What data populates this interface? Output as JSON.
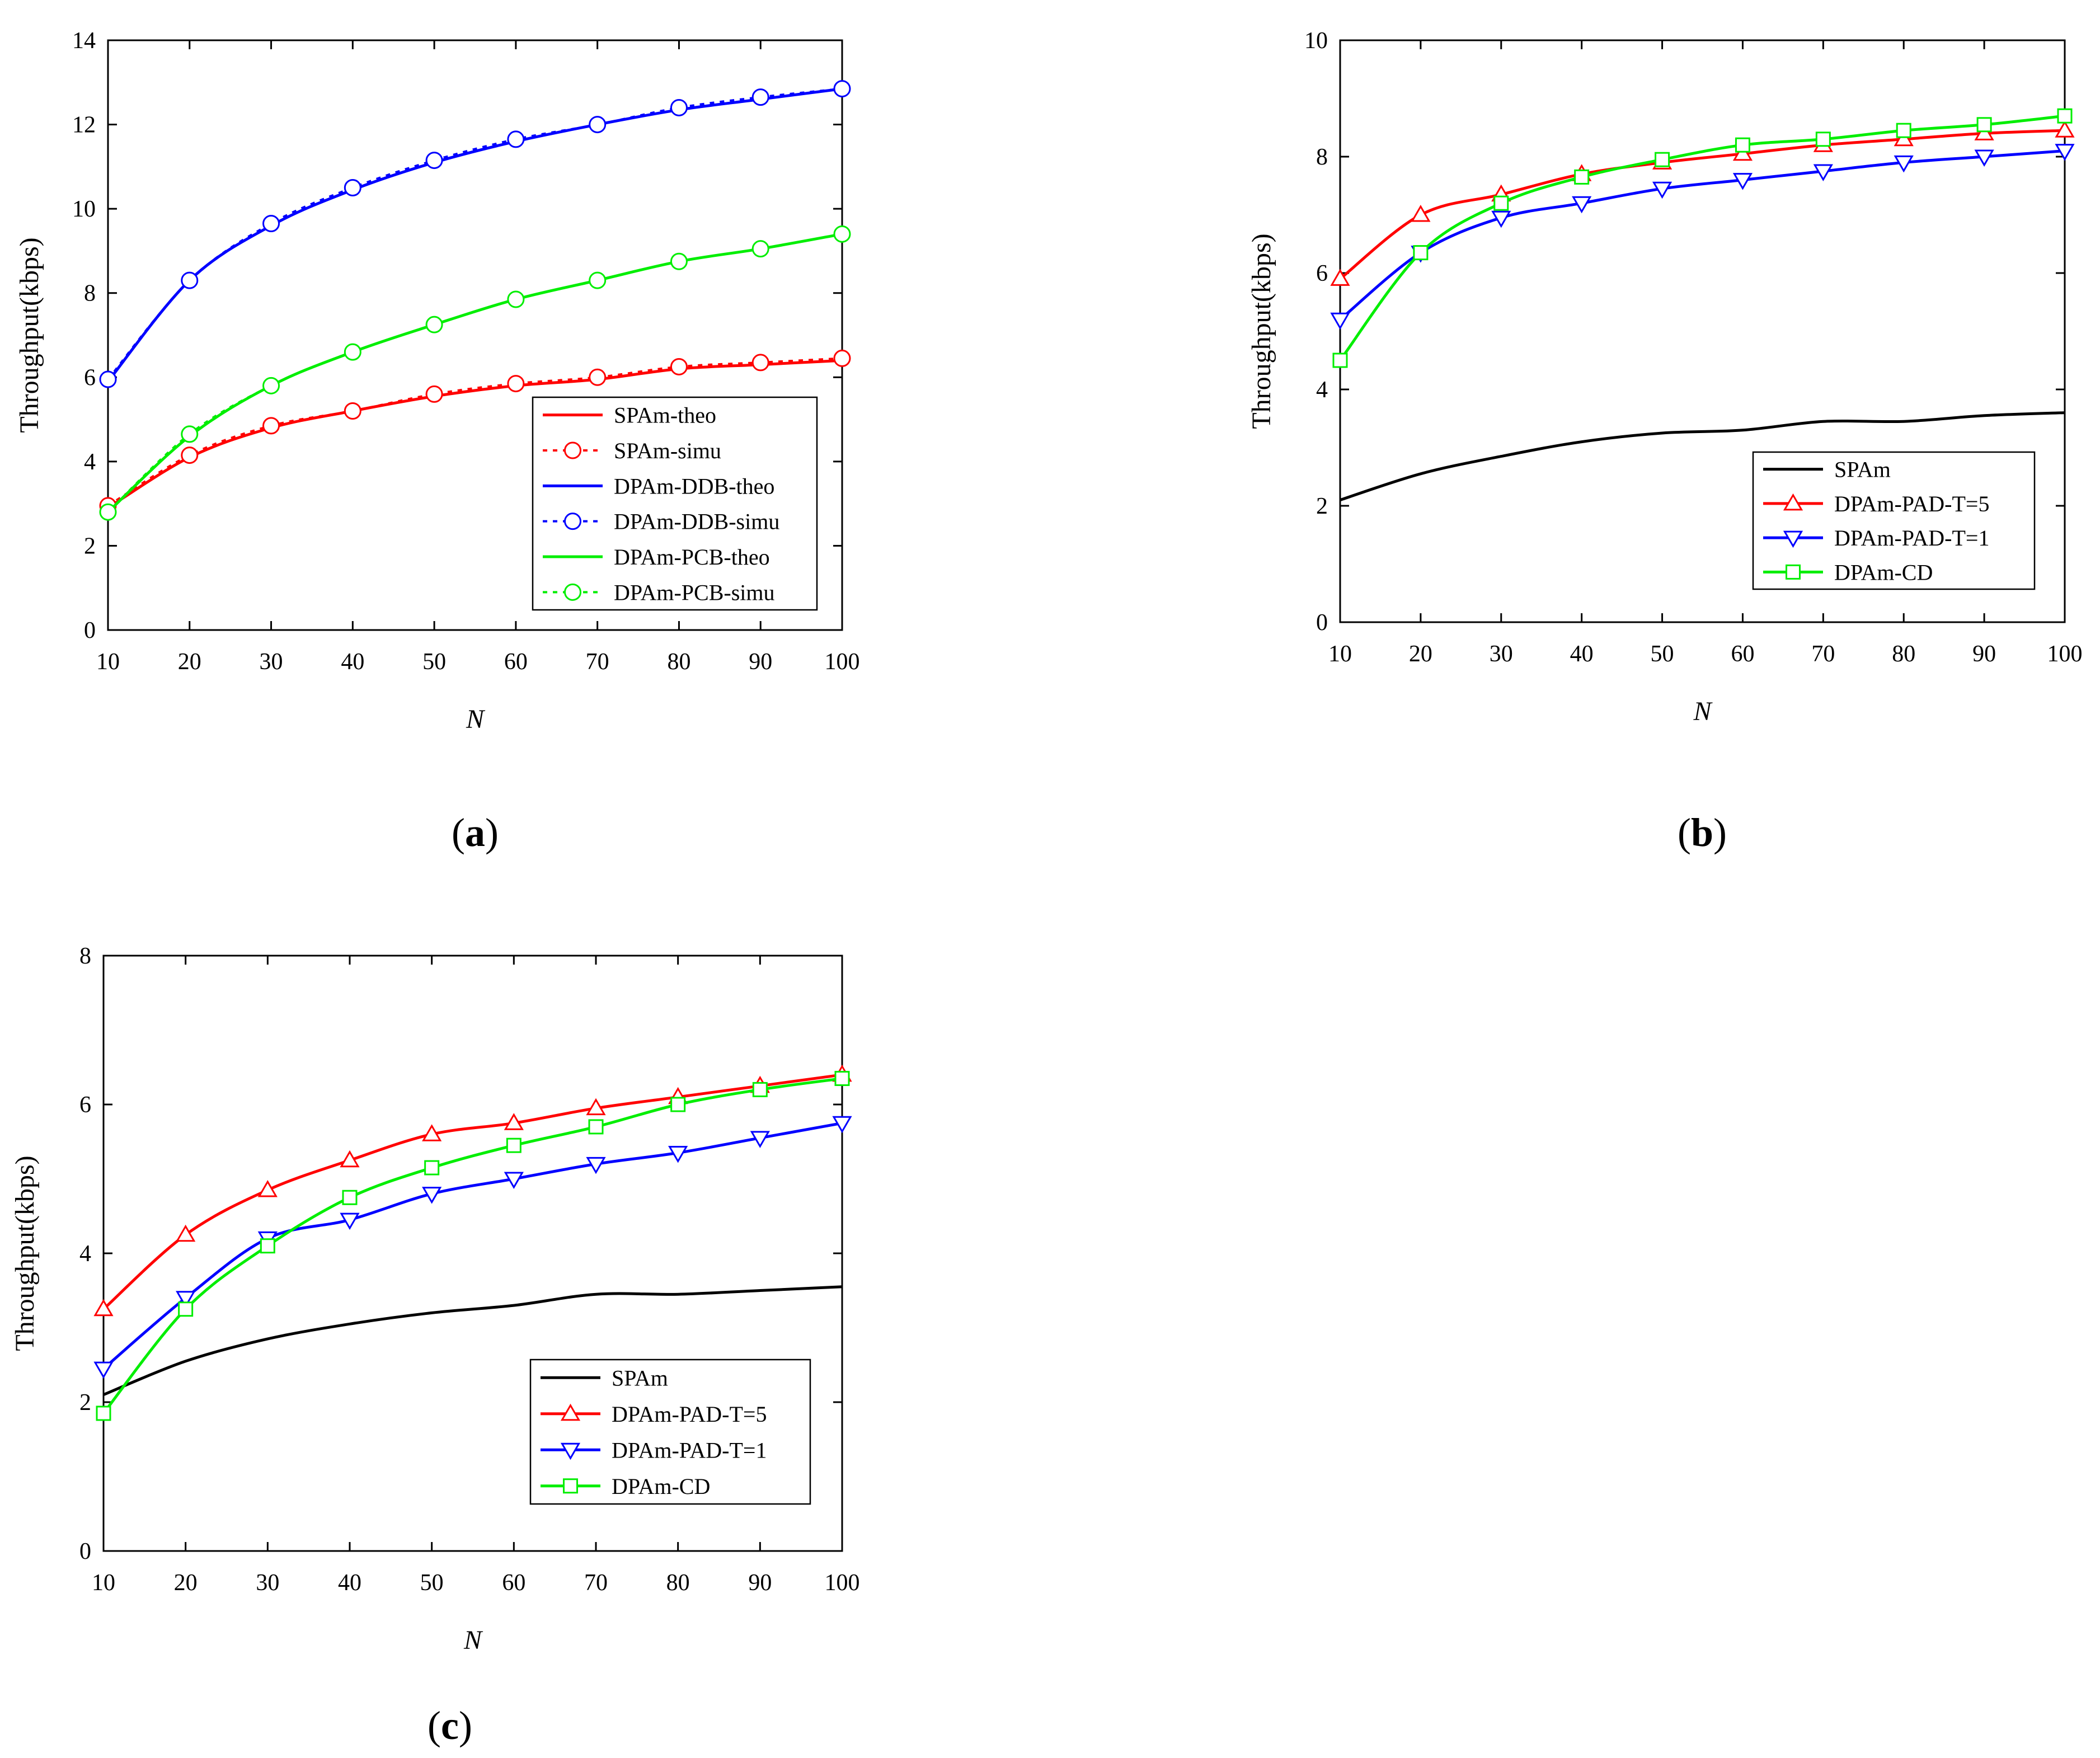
{
  "chart_data": [
    {
      "id": "a",
      "type": "line",
      "caption": "a",
      "xlabel": "N",
      "ylabel": "Throughput(kbps)",
      "xlim": [
        10,
        100
      ],
      "ylim": [
        0,
        14
      ],
      "xticks": [
        10,
        20,
        30,
        40,
        50,
        60,
        70,
        80,
        90,
        100
      ],
      "yticks": [
        0,
        2,
        4,
        6,
        8,
        10,
        12,
        14
      ],
      "legend_position": "bottom-right",
      "x": [
        10,
        20,
        30,
        40,
        50,
        60,
        70,
        80,
        90,
        100
      ],
      "series": [
        {
          "name": "SPAm-theo",
          "color": "#ff0000",
          "line": "solid",
          "marker": "none",
          "values": [
            2.9,
            4.1,
            4.8,
            5.2,
            5.55,
            5.8,
            5.95,
            6.2,
            6.3,
            6.4
          ]
        },
        {
          "name": "SPAm-simu",
          "color": "#ff0000",
          "line": "dotted",
          "marker": "circle",
          "values": [
            2.95,
            4.15,
            4.85,
            5.2,
            5.6,
            5.85,
            6.0,
            6.25,
            6.35,
            6.45
          ]
        },
        {
          "name": "DPAm-DDB-theo",
          "color": "#0000ff",
          "line": "solid",
          "marker": "none",
          "values": [
            5.9,
            8.3,
            9.6,
            10.45,
            11.1,
            11.6,
            12.0,
            12.35,
            12.6,
            12.85
          ]
        },
        {
          "name": "DPAm-DDB-simu",
          "color": "#0000ff",
          "line": "dotted",
          "marker": "circle",
          "values": [
            5.95,
            8.3,
            9.65,
            10.5,
            11.15,
            11.65,
            12.0,
            12.4,
            12.65,
            12.85
          ]
        },
        {
          "name": "DPAm-PCB-theo",
          "color": "#00ee00",
          "line": "solid",
          "marker": "none",
          "values": [
            2.8,
            4.6,
            5.8,
            6.6,
            7.25,
            7.85,
            8.3,
            8.75,
            9.05,
            9.4
          ]
        },
        {
          "name": "DPAm-PCB-simu",
          "color": "#00ee00",
          "line": "dotted",
          "marker": "circle",
          "values": [
            2.8,
            4.65,
            5.8,
            6.6,
            7.25,
            7.85,
            8.3,
            8.75,
            9.05,
            9.4
          ]
        }
      ]
    },
    {
      "id": "b",
      "type": "line",
      "caption": "b",
      "xlabel": "N",
      "ylabel": "Throughput(kbps)",
      "xlim": [
        10,
        100
      ],
      "ylim": [
        0,
        10
      ],
      "xticks": [
        10,
        20,
        30,
        40,
        50,
        60,
        70,
        80,
        90,
        100
      ],
      "yticks": [
        0,
        2,
        4,
        6,
        8,
        10
      ],
      "legend_position": "bottom-right",
      "x": [
        10,
        20,
        30,
        40,
        50,
        60,
        70,
        80,
        90,
        100
      ],
      "series": [
        {
          "name": "SPAm",
          "color": "#000000",
          "line": "solid",
          "marker": "none",
          "values": [
            2.1,
            2.55,
            2.85,
            3.1,
            3.25,
            3.3,
            3.45,
            3.45,
            3.55,
            3.6
          ]
        },
        {
          "name": "DPAm-PAD-T=5",
          "color": "#ff0000",
          "line": "solid",
          "marker": "triangle-up",
          "values": [
            5.9,
            7.0,
            7.35,
            7.7,
            7.9,
            8.05,
            8.2,
            8.3,
            8.4,
            8.45
          ]
        },
        {
          "name": "DPAm-PAD-T=1",
          "color": "#0000ff",
          "line": "solid",
          "marker": "triangle-down",
          "values": [
            5.2,
            6.35,
            6.95,
            7.2,
            7.45,
            7.6,
            7.75,
            7.9,
            8.0,
            8.1
          ]
        },
        {
          "name": "DPAm-CD",
          "color": "#00ee00",
          "line": "solid",
          "marker": "square",
          "values": [
            4.5,
            6.35,
            7.2,
            7.65,
            7.95,
            8.2,
            8.3,
            8.45,
            8.55,
            8.7
          ]
        }
      ]
    },
    {
      "id": "c",
      "type": "line",
      "caption": "c",
      "xlabel": "N",
      "ylabel": "Throughput(kbps)",
      "xlim": [
        10,
        100
      ],
      "ylim": [
        0,
        8
      ],
      "xticks": [
        10,
        20,
        30,
        40,
        50,
        60,
        70,
        80,
        90,
        100
      ],
      "yticks": [
        0,
        2,
        4,
        6,
        8
      ],
      "legend_position": "bottom-right",
      "x": [
        10,
        20,
        30,
        40,
        50,
        60,
        70,
        80,
        90,
        100
      ],
      "series": [
        {
          "name": "SPAm",
          "color": "#000000",
          "line": "solid",
          "marker": "none",
          "values": [
            2.1,
            2.55,
            2.85,
            3.05,
            3.2,
            3.3,
            3.45,
            3.45,
            3.5,
            3.55
          ]
        },
        {
          "name": "DPAm-PAD-T=5",
          "color": "#ff0000",
          "line": "solid",
          "marker": "triangle-up",
          "values": [
            3.25,
            4.25,
            4.85,
            5.25,
            5.6,
            5.75,
            5.95,
            6.1,
            6.25,
            6.4
          ]
        },
        {
          "name": "DPAm-PAD-T=1",
          "color": "#0000ff",
          "line": "solid",
          "marker": "triangle-down",
          "values": [
            2.45,
            3.4,
            4.2,
            4.45,
            4.8,
            5.0,
            5.2,
            5.35,
            5.55,
            5.75
          ]
        },
        {
          "name": "DPAm-CD",
          "color": "#00ee00",
          "line": "solid",
          "marker": "square",
          "values": [
            1.85,
            3.25,
            4.1,
            4.75,
            5.15,
            5.45,
            5.7,
            6.0,
            6.2,
            6.35
          ]
        }
      ]
    }
  ]
}
